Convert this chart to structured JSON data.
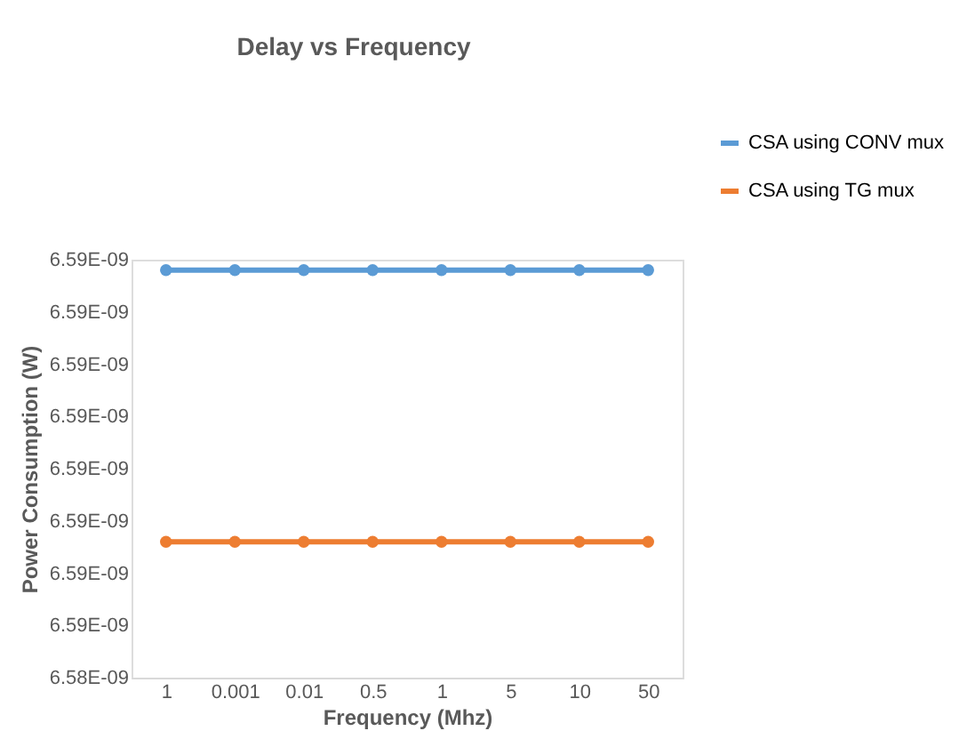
{
  "chart_data": {
    "type": "line",
    "title": "Delay vs Frequency",
    "xlabel": "Frequency (Mhz)",
    "ylabel": "Power Consumption (W)",
    "categories": [
      "1",
      "0.001",
      "0.01",
      "0.5",
      "1",
      "5",
      "10",
      "50"
    ],
    "series": [
      {
        "name": "CSA using CONV mux",
        "color": "#5b9bd5",
        "values": [
          6.5887e-09,
          6.5887e-09,
          6.5887e-09,
          6.5887e-09,
          6.5887e-09,
          6.5887e-09,
          6.5887e-09,
          6.5887e-09
        ]
      },
      {
        "name": "CSA using TG mux",
        "color": "#ed7d31",
        "values": [
          6.5861e-09,
          6.5861e-09,
          6.5861e-09,
          6.5861e-09,
          6.5861e-09,
          6.5861e-09,
          6.5861e-09,
          6.5861e-09
        ]
      }
    ],
    "ylim": [
      6.5848e-09,
      6.5888e-09
    ],
    "yticks": [
      {
        "value": 6.5848e-09,
        "label": "6.58E-09"
      },
      {
        "value": 6.5853e-09,
        "label": "6.59E-09"
      },
      {
        "value": 6.5858e-09,
        "label": "6.59E-09"
      },
      {
        "value": 6.5863e-09,
        "label": "6.59E-09"
      },
      {
        "value": 6.5868e-09,
        "label": "6.59E-09"
      },
      {
        "value": 6.5873e-09,
        "label": "6.59E-09"
      },
      {
        "value": 6.5878e-09,
        "label": "6.59E-09"
      },
      {
        "value": 6.5883e-09,
        "label": "6.59E-09"
      },
      {
        "value": 6.5888e-09,
        "label": "6.59E-09"
      }
    ],
    "legend": "top right",
    "marker": "circle",
    "line_style": "solid",
    "grid": false
  }
}
